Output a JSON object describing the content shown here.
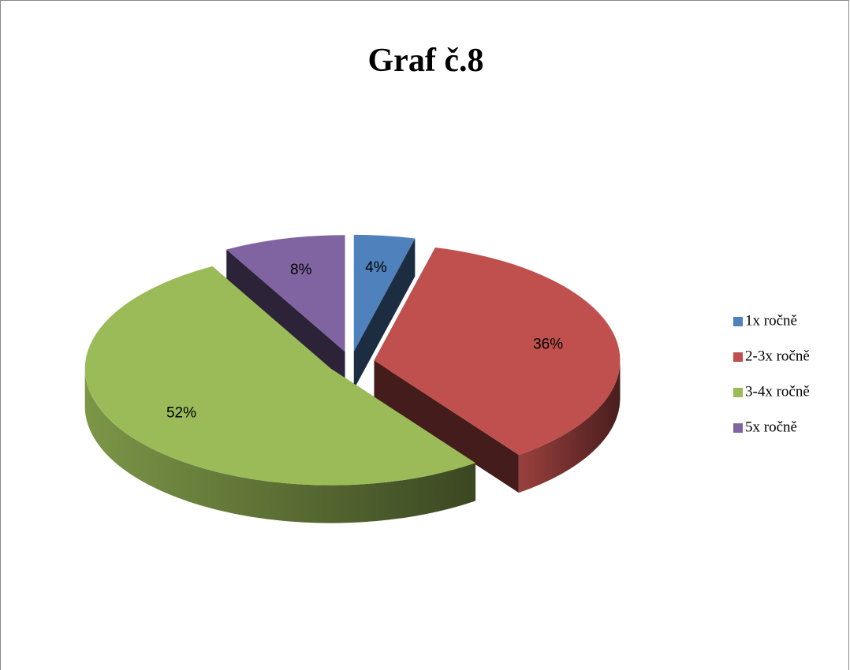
{
  "chart_data": {
    "type": "pie3d",
    "title": "Graf č.8",
    "categories": [
      "1x ročně",
      "2-3x ročně",
      "3-4x ročně",
      "5x ročně"
    ],
    "values": [
      4,
      36,
      52,
      8
    ],
    "value_labels": [
      "4%",
      "36%",
      "52%",
      "8%"
    ],
    "colors": [
      "#4f81bd",
      "#c0504d",
      "#9bbb59",
      "#8064a2"
    ],
    "legend": "right"
  }
}
